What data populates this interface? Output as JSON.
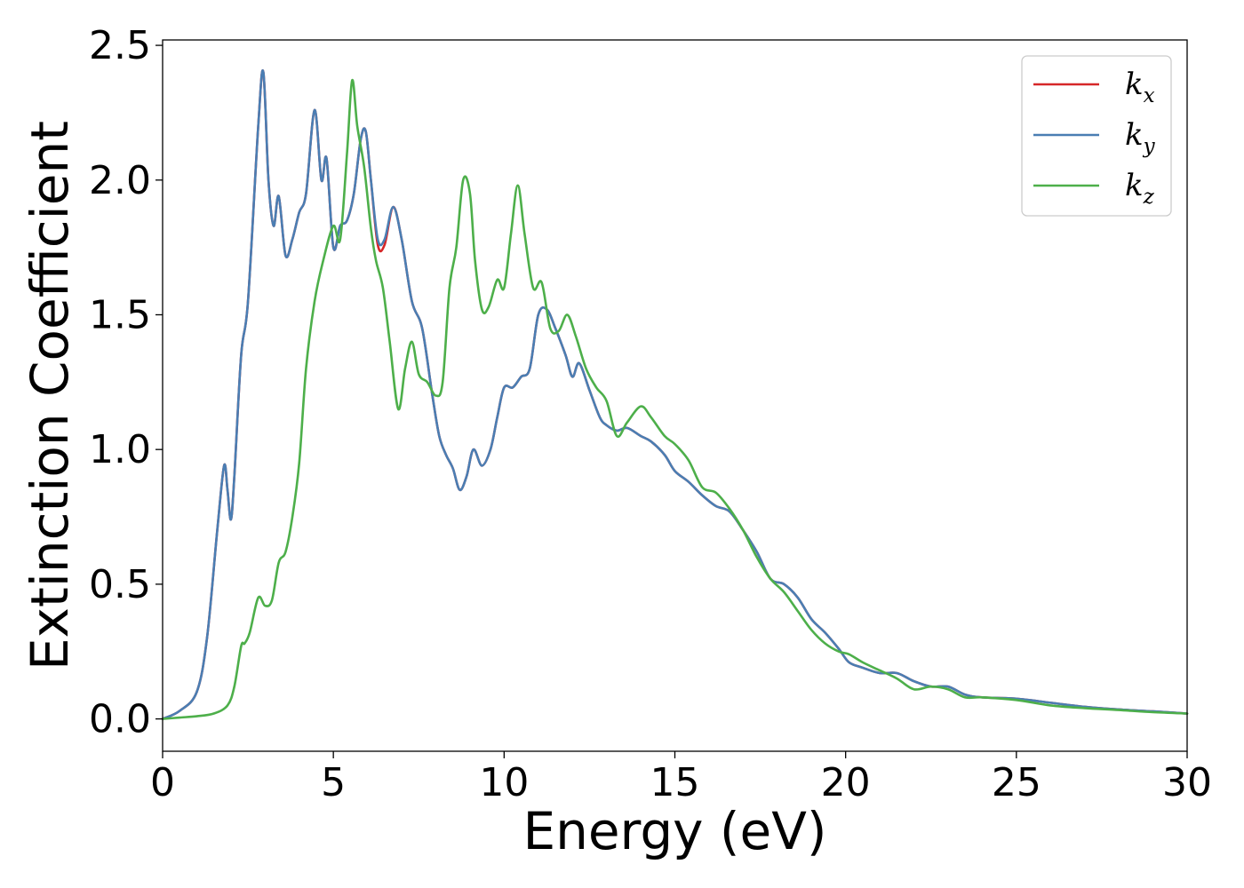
{
  "chart_data": {
    "type": "line",
    "xlabel": "Energy (eV)",
    "ylabel": "Extinction Coefficient",
    "xlim": [
      0,
      30
    ],
    "ylim": [
      -0.12,
      2.52
    ],
    "xticks": [
      0,
      5,
      10,
      15,
      20,
      25,
      30
    ],
    "xtick_labels": [
      "0",
      "5",
      "10",
      "15",
      "20",
      "25",
      "30"
    ],
    "yticks": [
      0.0,
      0.5,
      1.0,
      1.5,
      2.0,
      2.5
    ],
    "ytick_labels": [
      "0.0",
      "0.5",
      "1.0",
      "1.5",
      "2.0",
      "2.5"
    ],
    "grid": false,
    "legend_position": "top-right",
    "series": [
      {
        "name": "k",
        "subscript": "x",
        "color": "#d62728",
        "x": [
          0,
          0.5,
          1,
          1.3,
          1.6,
          1.8,
          1.9,
          2.0,
          2.1,
          2.3,
          2.5,
          2.8,
          2.95,
          3.1,
          3.25,
          3.4,
          3.6,
          3.8,
          4.0,
          4.2,
          4.45,
          4.65,
          4.8,
          5.0,
          5.2,
          5.4,
          5.6,
          5.8,
          5.95,
          6.1,
          6.3,
          6.5,
          6.75,
          7.0,
          7.3,
          7.6,
          7.9,
          8.1,
          8.3,
          8.5,
          8.7,
          8.9,
          9.1,
          9.35,
          9.6,
          9.8,
          10.0,
          10.25,
          10.5,
          10.75,
          11.0,
          11.25,
          11.5,
          11.8,
          12.0,
          12.2,
          12.5,
          12.8,
          13.0,
          13.3,
          13.6,
          14.0,
          14.3,
          14.7,
          15.0,
          15.4,
          15.8,
          16.2,
          16.6,
          17.0,
          17.4,
          17.8,
          18.2,
          18.6,
          19.0,
          19.4,
          19.8,
          20.1,
          20.5,
          21.0,
          21.5,
          22.0,
          22.5,
          23.0,
          23.5,
          24.0,
          25.0,
          26.0,
          27.0,
          28.0,
          29.0,
          30.0
        ],
        "y": [
          0.0,
          0.03,
          0.1,
          0.3,
          0.7,
          0.94,
          0.85,
          0.74,
          0.9,
          1.35,
          1.55,
          2.2,
          2.4,
          2.0,
          1.83,
          1.94,
          1.72,
          1.78,
          1.88,
          1.95,
          2.26,
          2.0,
          2.08,
          1.75,
          1.83,
          1.85,
          1.95,
          2.15,
          2.18,
          2.0,
          1.76,
          1.76,
          1.9,
          1.78,
          1.55,
          1.45,
          1.2,
          1.05,
          0.98,
          0.93,
          0.85,
          0.9,
          1.0,
          0.94,
          1.0,
          1.12,
          1.23,
          1.23,
          1.27,
          1.3,
          1.5,
          1.52,
          1.45,
          1.35,
          1.27,
          1.32,
          1.22,
          1.12,
          1.09,
          1.07,
          1.08,
          1.05,
          1.03,
          0.98,
          0.92,
          0.88,
          0.83,
          0.79,
          0.77,
          0.7,
          0.62,
          0.52,
          0.5,
          0.45,
          0.37,
          0.32,
          0.26,
          0.21,
          0.19,
          0.17,
          0.17,
          0.14,
          0.12,
          0.12,
          0.09,
          0.08,
          0.075,
          0.06,
          0.045,
          0.035,
          0.028,
          0.02
        ]
      },
      {
        "name": "k",
        "subscript": "y",
        "color": "#4a7eb3",
        "x": [
          0,
          0.5,
          1,
          1.3,
          1.6,
          1.8,
          1.9,
          2.0,
          2.1,
          2.3,
          2.5,
          2.8,
          2.95,
          3.1,
          3.25,
          3.4,
          3.6,
          3.8,
          4.0,
          4.2,
          4.45,
          4.65,
          4.8,
          5.0,
          5.2,
          5.4,
          5.6,
          5.8,
          5.95,
          6.1,
          6.3,
          6.5,
          6.75,
          7.0,
          7.3,
          7.6,
          7.9,
          8.1,
          8.3,
          8.5,
          8.7,
          8.9,
          9.1,
          9.35,
          9.6,
          9.8,
          10.0,
          10.25,
          10.5,
          10.75,
          11.0,
          11.25,
          11.5,
          11.8,
          12.0,
          12.2,
          12.5,
          12.8,
          13.0,
          13.3,
          13.6,
          14.0,
          14.3,
          14.7,
          15.0,
          15.4,
          15.8,
          16.2,
          16.6,
          17.0,
          17.4,
          17.8,
          18.2,
          18.6,
          19.0,
          19.4,
          19.8,
          20.1,
          20.5,
          21.0,
          21.5,
          22.0,
          22.5,
          23.0,
          23.5,
          24.0,
          25.0,
          26.0,
          27.0,
          28.0,
          29.0,
          30.0
        ],
        "y": [
          0.0,
          0.03,
          0.1,
          0.3,
          0.7,
          0.94,
          0.85,
          0.74,
          0.9,
          1.35,
          1.55,
          2.2,
          2.4,
          2.0,
          1.83,
          1.94,
          1.72,
          1.78,
          1.88,
          1.95,
          2.26,
          2.0,
          2.08,
          1.75,
          1.83,
          1.85,
          1.95,
          2.15,
          2.18,
          2.0,
          1.78,
          1.78,
          1.9,
          1.78,
          1.55,
          1.45,
          1.2,
          1.05,
          0.98,
          0.93,
          0.85,
          0.9,
          1.0,
          0.94,
          1.0,
          1.12,
          1.23,
          1.23,
          1.27,
          1.3,
          1.5,
          1.52,
          1.45,
          1.35,
          1.27,
          1.32,
          1.22,
          1.12,
          1.09,
          1.07,
          1.08,
          1.05,
          1.03,
          0.98,
          0.92,
          0.88,
          0.83,
          0.79,
          0.77,
          0.7,
          0.62,
          0.52,
          0.5,
          0.45,
          0.37,
          0.32,
          0.26,
          0.21,
          0.19,
          0.17,
          0.17,
          0.14,
          0.12,
          0.12,
          0.09,
          0.08,
          0.075,
          0.06,
          0.045,
          0.035,
          0.028,
          0.02
        ]
      },
      {
        "name": "k",
        "subscript": "z",
        "color": "#4daf4a",
        "x": [
          0,
          0.5,
          1,
          1.5,
          1.9,
          2.1,
          2.3,
          2.4,
          2.55,
          2.8,
          3.0,
          3.2,
          3.4,
          3.6,
          3.8,
          4.0,
          4.2,
          4.45,
          4.7,
          5.0,
          5.2,
          5.4,
          5.55,
          5.7,
          5.9,
          6.1,
          6.25,
          6.45,
          6.65,
          6.9,
          7.1,
          7.3,
          7.5,
          7.75,
          8.0,
          8.2,
          8.4,
          8.6,
          8.8,
          9.0,
          9.15,
          9.35,
          9.55,
          9.8,
          10.0,
          10.2,
          10.4,
          10.6,
          10.85,
          11.1,
          11.35,
          11.6,
          11.85,
          12.1,
          12.4,
          12.7,
          13.0,
          13.3,
          13.6,
          14.0,
          14.3,
          14.7,
          15.0,
          15.4,
          15.8,
          16.2,
          16.6,
          17.0,
          17.4,
          17.8,
          18.2,
          18.6,
          19.0,
          19.4,
          19.8,
          20.1,
          20.5,
          21.0,
          21.5,
          22.0,
          22.5,
          23.0,
          23.5,
          24.0,
          25.0,
          26.0,
          27.0,
          28.0,
          29.0,
          30.0
        ],
        "y": [
          0.0,
          0.005,
          0.01,
          0.02,
          0.05,
          0.12,
          0.27,
          0.28,
          0.32,
          0.45,
          0.42,
          0.44,
          0.58,
          0.62,
          0.75,
          0.95,
          1.3,
          1.55,
          1.7,
          1.83,
          1.78,
          2.1,
          2.37,
          2.2,
          2.05,
          1.82,
          1.7,
          1.6,
          1.4,
          1.15,
          1.3,
          1.4,
          1.28,
          1.25,
          1.2,
          1.25,
          1.6,
          1.75,
          2.0,
          1.95,
          1.7,
          1.52,
          1.53,
          1.63,
          1.6,
          1.8,
          1.98,
          1.8,
          1.6,
          1.62,
          1.45,
          1.44,
          1.5,
          1.42,
          1.3,
          1.23,
          1.18,
          1.05,
          1.1,
          1.16,
          1.12,
          1.05,
          1.02,
          0.96,
          0.86,
          0.84,
          0.78,
          0.7,
          0.6,
          0.52,
          0.47,
          0.4,
          0.33,
          0.28,
          0.25,
          0.24,
          0.21,
          0.18,
          0.15,
          0.11,
          0.12,
          0.11,
          0.08,
          0.08,
          0.07,
          0.05,
          0.04,
          0.033,
          0.025,
          0.02
        ]
      }
    ]
  }
}
